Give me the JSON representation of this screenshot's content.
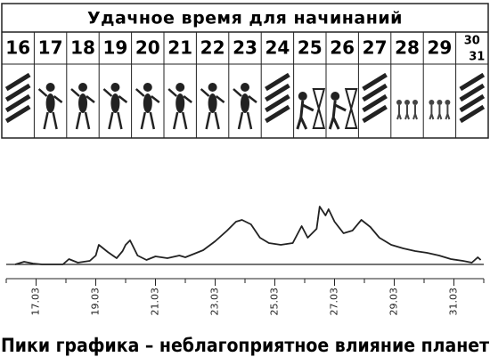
{
  "header": {
    "title": "Удачное время для начинаний"
  },
  "calendar": {
    "days": [
      "16",
      "17",
      "18",
      "19",
      "20",
      "21",
      "22",
      "23",
      "24",
      "25",
      "26",
      "27",
      "28",
      "29",
      "30",
      "31"
    ]
  },
  "chart_data": {
    "type": "line",
    "x": [
      16.3,
      16.6,
      16.9,
      17.2,
      17.9,
      18.1,
      18.4,
      18.8,
      19.0,
      19.1,
      19.4,
      19.7,
      19.9,
      20.0,
      20.15,
      20.4,
      20.7,
      21.0,
      21.4,
      21.8,
      22.0,
      22.3,
      22.6,
      23.0,
      23.4,
      23.7,
      23.9,
      24.2,
      24.5,
      24.8,
      25.2,
      25.6,
      25.9,
      26.1,
      26.4,
      26.5,
      26.7,
      26.8,
      27.0,
      27.3,
      27.6,
      27.9,
      28.2,
      28.5,
      28.9,
      29.3,
      29.7,
      30.1,
      30.5,
      30.9,
      31.3,
      31.6,
      31.8,
      31.9
    ],
    "series": [
      {
        "color": "#222222",
        "values": [
          0,
          3,
          1,
          0,
          0,
          6,
          2,
          4,
          10,
          22,
          14,
          7,
          15,
          22,
          27,
          10,
          5,
          9,
          7,
          10,
          8,
          12,
          16,
          26,
          38,
          48,
          50,
          45,
          30,
          24,
          22,
          24,
          43,
          30,
          40,
          65,
          55,
          62,
          48,
          35,
          38,
          50,
          42,
          30,
          22,
          18,
          15,
          13,
          10,
          6,
          4,
          2,
          8,
          5
        ]
      }
    ],
    "xlim": [
      16,
      32
    ],
    "ylim": [
      0,
      70
    ],
    "xticks": [
      {
        "value": 17,
        "label": "17.03"
      },
      {
        "value": 19,
        "label": "19.03"
      },
      {
        "value": 21,
        "label": "21.03"
      },
      {
        "value": 23,
        "label": "23.03"
      },
      {
        "value": 25,
        "label": "25.03"
      },
      {
        "value": 27,
        "label": "27.03"
      },
      {
        "value": 29,
        "label": "29.03"
      },
      {
        "value": 31,
        "label": "31.03"
      }
    ],
    "minor_xticks": [
      16,
      17,
      18,
      19,
      20,
      21,
      22,
      23,
      24,
      25,
      26,
      27,
      28,
      29,
      30,
      31,
      32
    ],
    "caption": "Пики графика – неблагоприятное влияние планет"
  }
}
